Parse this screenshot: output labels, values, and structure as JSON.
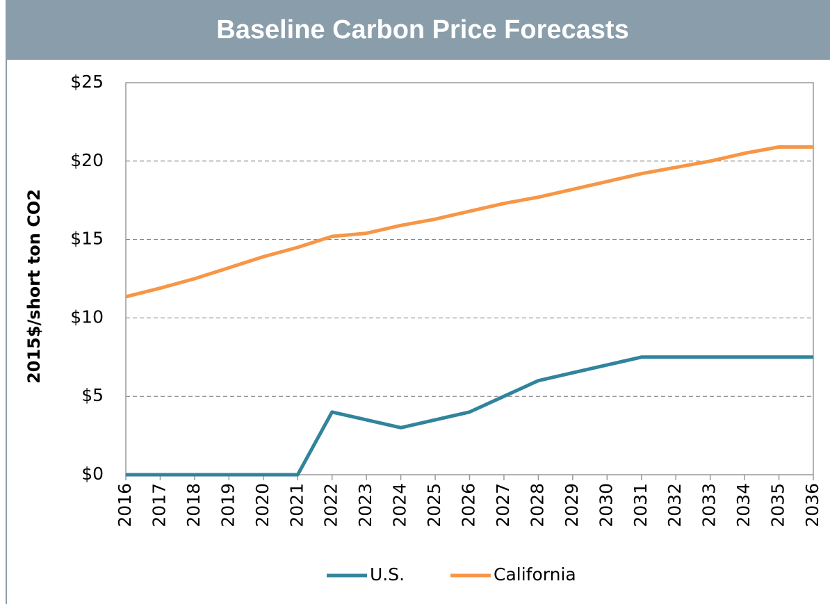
{
  "chart_data": {
    "type": "line",
    "title": "Baseline Carbon Price Forecasts",
    "y_label": "2015$/short ton CO2",
    "x": [
      2016,
      2017,
      2018,
      2019,
      2020,
      2021,
      2022,
      2023,
      2024,
      2025,
      2026,
      2027,
      2028,
      2029,
      2030,
      2031,
      2032,
      2033,
      2034,
      2035,
      2036
    ],
    "xlim": [
      2016,
      2036
    ],
    "xticks": [
      2016,
      2017,
      2018,
      2019,
      2020,
      2021,
      2022,
      2023,
      2024,
      2025,
      2026,
      2027,
      2028,
      2029,
      2030,
      2031,
      2032,
      2033,
      2034,
      2035,
      2036
    ],
    "ylim": [
      0,
      25
    ],
    "yticks": [
      {
        "value": 0,
        "label": "$0"
      },
      {
        "value": 5,
        "label": "$5"
      },
      {
        "value": 10,
        "label": "$10"
      },
      {
        "value": 15,
        "label": "$15"
      },
      {
        "value": 20,
        "label": "$20"
      },
      {
        "value": 25,
        "label": "$25"
      }
    ],
    "grid": true,
    "legend": "bottom",
    "series": [
      {
        "name": "U.S.",
        "color": "#31849b",
        "values": [
          0,
          0,
          0,
          0,
          0,
          0,
          4.0,
          3.5,
          3.0,
          3.5,
          4.0,
          5.0,
          6.0,
          6.5,
          7.0,
          7.5,
          7.5,
          7.5,
          7.5,
          7.5,
          7.5
        ]
      },
      {
        "name": "California",
        "color": "#f79646",
        "values": [
          11.35,
          11.9,
          12.5,
          13.2,
          13.9,
          14.5,
          15.2,
          15.4,
          15.9,
          16.3,
          16.8,
          17.3,
          17.7,
          18.2,
          18.7,
          19.2,
          19.6,
          20.0,
          20.5,
          20.9,
          20.9
        ]
      }
    ]
  }
}
